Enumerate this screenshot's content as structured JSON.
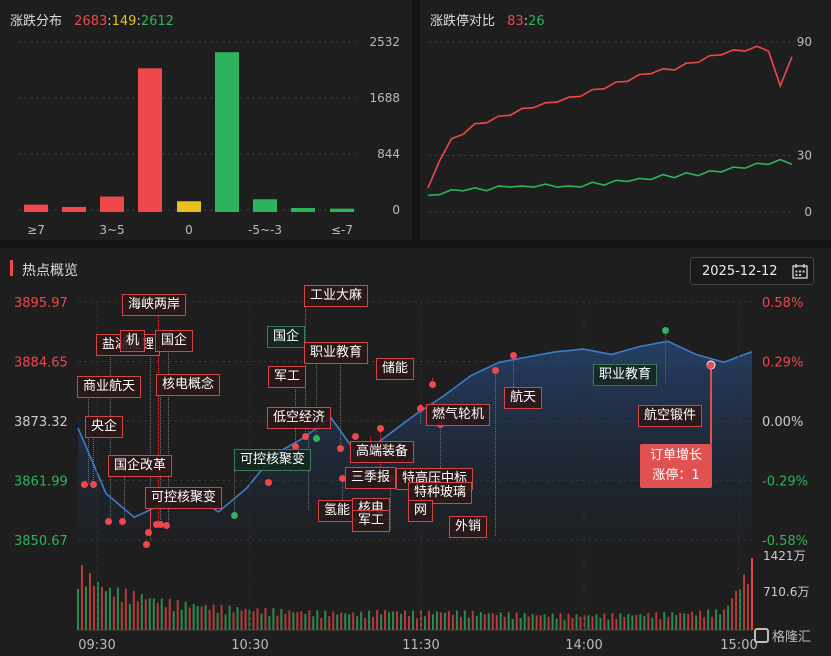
{
  "dist": {
    "title": "涨跌分布",
    "up": "2683",
    "sep1": ":",
    "flat": "149",
    "sep2": ":",
    "down": "2612",
    "yticks": [
      "2532",
      "1688",
      "844",
      "0"
    ],
    "xticks": [
      "≥7",
      "3~5",
      "0",
      "-5~-3",
      "≤-7"
    ]
  },
  "limit": {
    "title": "涨跌停对比",
    "up": "83",
    "sep": ":",
    "down": "26",
    "yticks": [
      "90",
      "30",
      "0"
    ]
  },
  "overview": {
    "title": "热点概览",
    "date": "2025-12-12",
    "left_ticks": [
      "3895.97",
      "3884.65",
      "3873.32",
      "3861.99",
      "3850.67"
    ],
    "right_ticks": [
      "0.58%",
      "0.29%",
      "0.00%",
      "-0.29%",
      "-0.58%"
    ],
    "vol_ticks": [
      "1421万",
      "710.6万"
    ],
    "time_ticks": [
      "09:30",
      "10:30",
      "11:30",
      "14:00",
      "15:00"
    ],
    "callout_line1": "订单增长",
    "callout_line2": "涨停：1",
    "tags": [
      "海峡两岸",
      "盐湖提锂",
      "机",
      "国企",
      "商业航天",
      "核电概念",
      "央企",
      "国企改革",
      "可控核聚变",
      "工业大麻",
      "国企",
      "职业教育",
      "军工",
      "储能",
      "低空经济",
      "可控核聚变",
      "高端装备",
      "燃气轮机",
      "航天",
      "三季报",
      "特高压中标",
      "特种玻璃",
      "氢能",
      "核电",
      "网",
      "军工",
      "外销",
      "职业教育",
      "航空锻件"
    ]
  },
  "watermark": "格隆汇",
  "colors": {
    "up": "#f0474d",
    "flat": "#e8c21a",
    "down": "#2db35d",
    "line": "#3d7cc9"
  },
  "chart_data": [
    {
      "type": "bar",
      "title": "涨跌分布",
      "categories": [
        "≥7",
        "",
        "3~5",
        "",
        "0",
        "",
        "-5~-3",
        "",
        "≤-7"
      ],
      "values": [
        110,
        75,
        230,
        2140,
        160,
        2380,
        190,
        60,
        50
      ],
      "ylim": [
        0,
        2532
      ]
    },
    {
      "type": "line",
      "title": "涨跌停对比",
      "ylim": [
        0,
        90
      ],
      "series": [
        {
          "name": "涨停",
          "values": [
            12,
            28,
            38,
            42,
            46,
            48,
            50,
            52,
            54,
            56,
            57,
            59,
            60,
            62,
            64,
            66,
            68,
            70,
            72,
            74,
            75,
            76,
            78,
            80,
            82,
            84,
            85,
            86,
            87,
            86,
            66,
            83
          ]
        },
        {
          "name": "跌停",
          "values": [
            8,
            10,
            11,
            12,
            12,
            12,
            13,
            14,
            13,
            14,
            14,
            14,
            13,
            14,
            15,
            15,
            16,
            17,
            17,
            18,
            19,
            19,
            20,
            20,
            21,
            22,
            23,
            24,
            25,
            26,
            27,
            26
          ]
        }
      ]
    },
    {
      "type": "line",
      "title": "热点概览",
      "ylim": [
        3850.67,
        3895.97
      ],
      "x": [
        "09:30",
        "09:40",
        "09:50",
        "10:00",
        "10:10",
        "10:20",
        "10:30",
        "10:40",
        "10:50",
        "11:00",
        "11:10",
        "11:20",
        "11:30",
        "13:10",
        "13:20",
        "13:30",
        "13:40",
        "13:50",
        "14:00",
        "14:10",
        "14:20",
        "14:30",
        "14:40",
        "14:50",
        "15:00"
      ],
      "values": [
        3872.0,
        3859.5,
        3855.0,
        3857.5,
        3860.0,
        3856.0,
        3860.5,
        3867.0,
        3870.0,
        3874.0,
        3866.5,
        3870.5,
        3874.5,
        3878.0,
        3882.0,
        3884.5,
        3885.5,
        3886.5,
        3887.0,
        3886.0,
        3887.5,
        3888.5,
        3886.0,
        3884.5,
        3886.5
      ],
      "volume": [
        1350,
        900,
        780,
        640,
        560,
        500,
        460,
        430,
        400,
        380,
        360,
        420,
        380,
        400,
        380,
        360,
        340,
        330,
        320,
        330,
        340,
        360,
        380,
        420,
        1421
      ]
    }
  ]
}
